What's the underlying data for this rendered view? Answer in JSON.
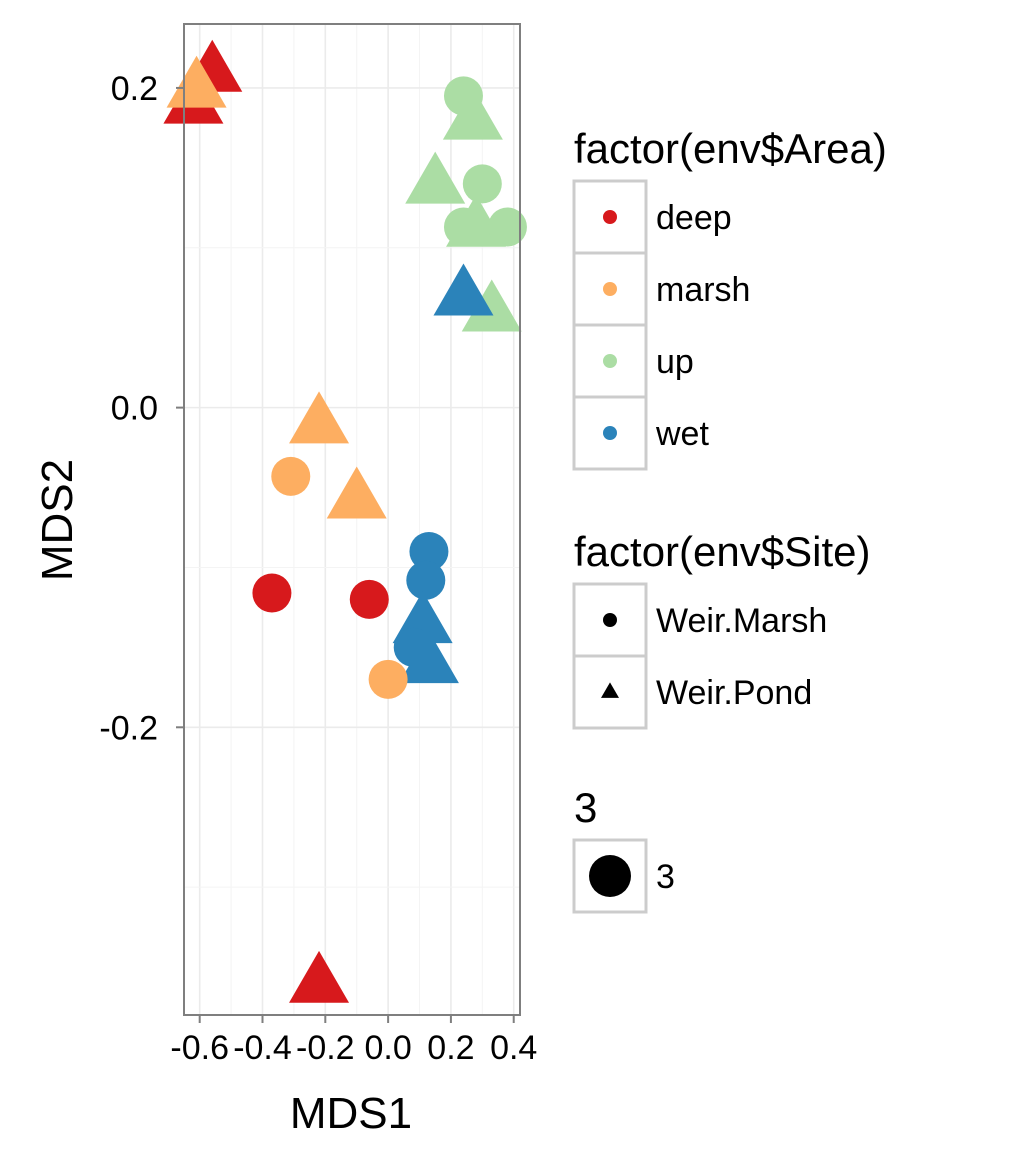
{
  "chart_data": {
    "type": "scatter",
    "xlabel": "MDS1",
    "ylabel": "MDS2",
    "xlim": [
      -0.65,
      0.42
    ],
    "ylim": [
      -0.38,
      0.24
    ],
    "x_ticks": [
      -0.6,
      -0.4,
      -0.2,
      0.0,
      0.2,
      0.4
    ],
    "x_tick_labels": [
      "-0.6",
      "-0.4",
      "-0.2",
      "0.0",
      "0.2",
      "0.4"
    ],
    "y_ticks": [
      -0.2,
      0.0,
      0.2
    ],
    "y_tick_labels": [
      "-0.2",
      "0.0",
      "0.2"
    ],
    "grid": true,
    "legend_position": "right",
    "legends": [
      {
        "title": "factor(env$Area)",
        "kind": "color",
        "items": [
          {
            "label": "deep",
            "color": "#d7191c"
          },
          {
            "label": "marsh",
            "color": "#fdae61"
          },
          {
            "label": "up",
            "color": "#abdda4"
          },
          {
            "label": "wet",
            "color": "#2b83ba"
          }
        ]
      },
      {
        "title": "factor(env$Site)",
        "kind": "shape",
        "items": [
          {
            "label": "Weir.Marsh",
            "shape": "circle"
          },
          {
            "label": "Weir.Pond",
            "shape": "triangle"
          }
        ]
      },
      {
        "title": "3",
        "kind": "size",
        "items": [
          {
            "label": "3",
            "shape": "circle"
          }
        ]
      }
    ],
    "points": [
      {
        "area": "deep",
        "site": "Weir.Pond",
        "x": -0.62,
        "y": 0.19
      },
      {
        "area": "deep",
        "site": "Weir.Pond",
        "x": -0.56,
        "y": 0.21
      },
      {
        "area": "marsh",
        "site": "Weir.Pond",
        "x": -0.61,
        "y": 0.2
      },
      {
        "area": "up",
        "site": "Weir.Marsh",
        "x": 0.24,
        "y": 0.195
      },
      {
        "area": "up",
        "site": "Weir.Pond",
        "x": 0.27,
        "y": 0.18
      },
      {
        "area": "up",
        "site": "Weir.Pond",
        "x": 0.15,
        "y": 0.14
      },
      {
        "area": "up",
        "site": "Weir.Marsh",
        "x": 0.3,
        "y": 0.14
      },
      {
        "area": "up",
        "site": "Weir.Marsh",
        "x": 0.24,
        "y": 0.113
      },
      {
        "area": "up",
        "site": "Weir.Pond",
        "x": 0.28,
        "y": 0.113
      },
      {
        "area": "up",
        "site": "Weir.Marsh",
        "x": 0.38,
        "y": 0.113
      },
      {
        "area": "up",
        "site": "Weir.Pond",
        "x": 0.33,
        "y": 0.06
      },
      {
        "area": "wet",
        "site": "Weir.Pond",
        "x": 0.24,
        "y": 0.07
      },
      {
        "area": "marsh",
        "site": "Weir.Pond",
        "x": -0.22,
        "y": -0.01
      },
      {
        "area": "marsh",
        "site": "Weir.Marsh",
        "x": -0.31,
        "y": -0.043
      },
      {
        "area": "marsh",
        "site": "Weir.Pond",
        "x": -0.1,
        "y": -0.057
      },
      {
        "area": "wet",
        "site": "Weir.Marsh",
        "x": 0.13,
        "y": -0.09
      },
      {
        "area": "wet",
        "site": "Weir.Marsh",
        "x": 0.12,
        "y": -0.108
      },
      {
        "area": "deep",
        "site": "Weir.Marsh",
        "x": -0.37,
        "y": -0.116
      },
      {
        "area": "deep",
        "site": "Weir.Marsh",
        "x": -0.06,
        "y": -0.12
      },
      {
        "area": "wet",
        "site": "Weir.Pond",
        "x": 0.11,
        "y": -0.135
      },
      {
        "area": "wet",
        "site": "Weir.Marsh",
        "x": 0.08,
        "y": -0.15
      },
      {
        "area": "wet",
        "site": "Weir.Pond",
        "x": 0.13,
        "y": -0.16
      },
      {
        "area": "marsh",
        "site": "Weir.Marsh",
        "x": 0.0,
        "y": -0.17
      },
      {
        "area": "deep",
        "site": "Weir.Pond",
        "x": -0.22,
        "y": -0.36
      }
    ]
  }
}
